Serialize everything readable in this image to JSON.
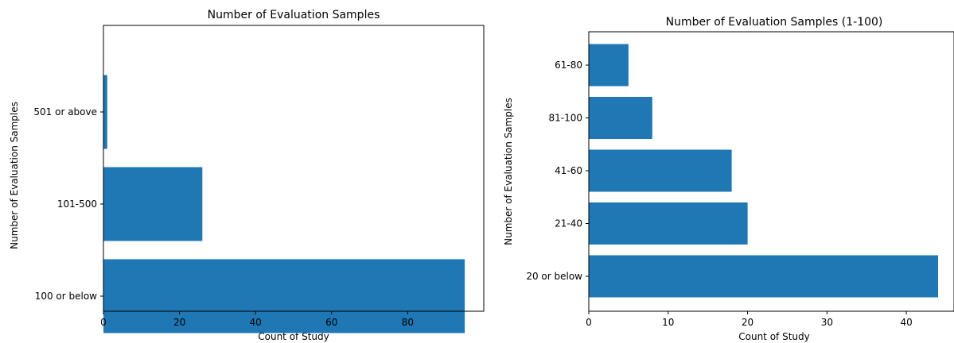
{
  "chart_data": [
    {
      "type": "bar",
      "orientation": "horizontal",
      "title": "Number of Evaluation Samples",
      "xlabel": "Count of Study",
      "ylabel": "Number of Evaluation Samples",
      "categories": [
        "100 or below",
        "101-500",
        "501 or above"
      ],
      "values": [
        95,
        26,
        1
      ],
      "xlim": [
        0,
        100
      ],
      "xticks": [
        0,
        20,
        40,
        60,
        80
      ],
      "color": "#1f77b4",
      "grid": false
    },
    {
      "type": "bar",
      "orientation": "horizontal",
      "title": "Number of Evaluation Samples (1-100)",
      "xlabel": "Count of Study",
      "ylabel": "Number of Evaluation Samples",
      "categories": [
        "20 or below",
        "21-40",
        "41-60",
        "81-100",
        "61-80"
      ],
      "values": [
        44,
        20,
        18,
        8,
        5
      ],
      "xlim": [
        0,
        46
      ],
      "xticks": [
        0,
        10,
        20,
        30,
        40
      ],
      "color": "#1f77b4",
      "grid": false
    }
  ]
}
